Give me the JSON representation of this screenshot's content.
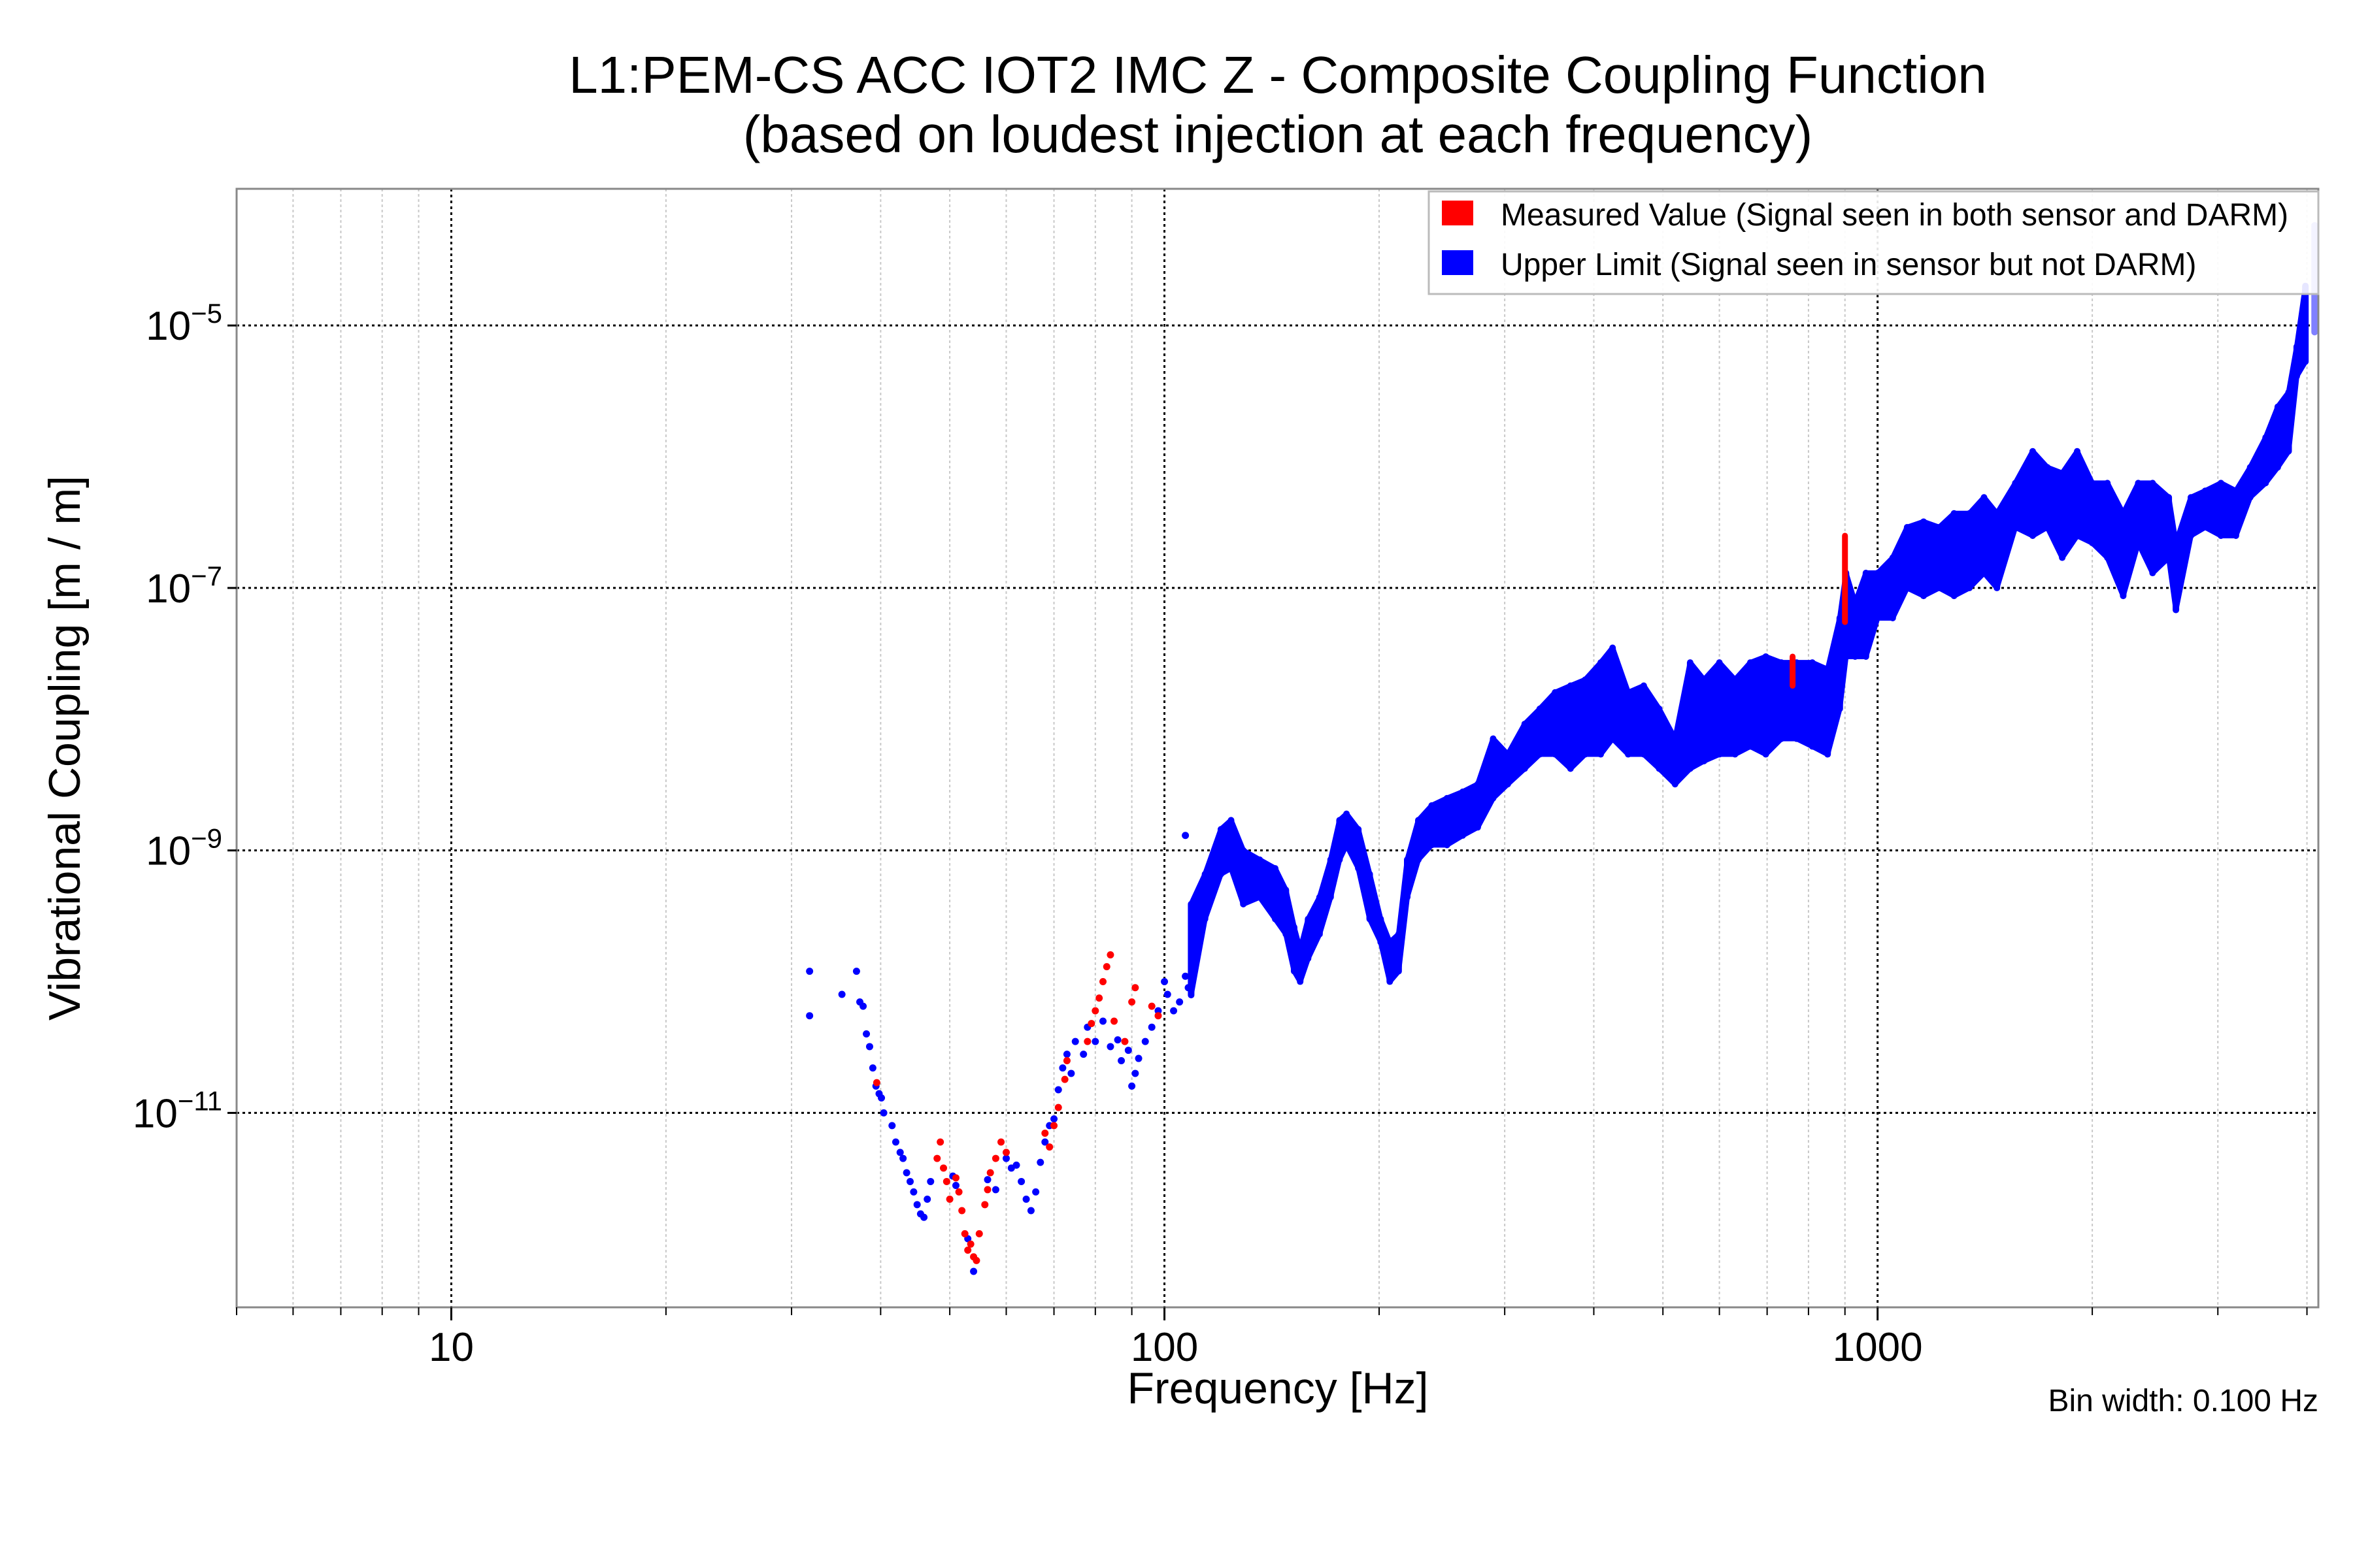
{
  "chart_data": {
    "type": "scatter",
    "title": "L1:PEM-CS ACC IOT2 IMC Z - Composite Coupling Function",
    "subtitle": "(based on loudest injection at each frequency)",
    "xlabel": "Frequency [Hz]",
    "ylabel": "Vibrational Coupling [m / m]",
    "xscale": "log",
    "yscale": "log",
    "xlim": [
      5,
      4150
    ],
    "ylim": [
      3.3e-13,
      0.00011
    ],
    "grid": true,
    "x_ticks": [
      {
        "value": 10,
        "label": "10"
      },
      {
        "value": 100,
        "label": "100"
      },
      {
        "value": 1000,
        "label": "1000"
      }
    ],
    "y_ticks": [
      {
        "value": 1e-05,
        "base": "10",
        "exp": "−5"
      },
      {
        "value": 1e-07,
        "base": "10",
        "exp": "−7"
      },
      {
        "value": 1e-09,
        "base": "10",
        "exp": "−9"
      },
      {
        "value": 1e-11,
        "base": "10",
        "exp": "−11"
      }
    ],
    "legend": {
      "placement": "top-right",
      "entries": [
        {
          "label": "Measured Value (Signal seen in both sensor and DARM)",
          "color": "#ff0000"
        },
        {
          "label": "Upper Limit (Signal seen in sensor but not DARM)",
          "color": "#0000ff"
        }
      ]
    },
    "annotation": "Bin width: 0.100 Hz",
    "series": [
      {
        "name": "Measured Value",
        "color": "#ff0000",
        "points": [
          [
            39.5,
            1.7e-11
          ],
          [
            48,
            4.5e-12
          ],
          [
            48.5,
            6e-12
          ],
          [
            49,
            3.8e-12
          ],
          [
            49.5,
            3e-12
          ],
          [
            50,
            2.2e-12
          ],
          [
            51,
            3.2e-12
          ],
          [
            51.5,
            2.5e-12
          ],
          [
            52,
            1.8e-12
          ],
          [
            52.5,
            1.2e-12
          ],
          [
            53,
            9e-13
          ],
          [
            53.5,
            1e-12
          ],
          [
            54,
            8e-13
          ],
          [
            54.5,
            7.5e-13
          ],
          [
            55,
            1.2e-12
          ],
          [
            56,
            2e-12
          ],
          [
            56.5,
            2.6e-12
          ],
          [
            57,
            3.5e-12
          ],
          [
            58,
            4.5e-12
          ],
          [
            59,
            6e-12
          ],
          [
            60,
            5e-12
          ],
          [
            68,
            7e-12
          ],
          [
            69,
            5.5e-12
          ],
          [
            70,
            8e-12
          ],
          [
            71,
            1.1e-11
          ],
          [
            72.5,
            1.8e-11
          ],
          [
            73,
            2.5e-11
          ],
          [
            78,
            3.5e-11
          ],
          [
            79,
            4.8e-11
          ],
          [
            80,
            6e-11
          ],
          [
            81,
            7.5e-11
          ],
          [
            82,
            1e-10
          ],
          [
            83,
            1.3e-10
          ],
          [
            84,
            1.6e-10
          ],
          [
            85,
            5e-11
          ],
          [
            88,
            3.5e-11
          ],
          [
            90,
            7e-11
          ],
          [
            91,
            9e-11
          ],
          [
            96,
            6.5e-11
          ],
          [
            98,
            5.5e-11
          ]
        ],
        "bands": [
          [
            760,
            1.8e-08,
            3e-08
          ],
          [
            900,
            5.5e-08,
            2.5e-07
          ]
        ]
      },
      {
        "name": "Upper Limit",
        "color": "#0000ff",
        "faded_color": "#8080ff",
        "points": [
          [
            31.8,
            1.2e-10
          ],
          [
            31.8,
            5.5e-11
          ],
          [
            35.3,
            8e-11
          ],
          [
            37,
            1.2e-10
          ],
          [
            37.4,
            7e-11
          ],
          [
            37.8,
            6.5e-11
          ],
          [
            38.2,
            4e-11
          ],
          [
            38.6,
            3.2e-11
          ],
          [
            39,
            2.2e-11
          ],
          [
            39.4,
            1.6e-11
          ],
          [
            39.8,
            1.4e-11
          ],
          [
            40.1,
            1.3e-11
          ],
          [
            40.4,
            1e-11
          ],
          [
            41.5,
            8e-12
          ],
          [
            42,
            6e-12
          ],
          [
            42.6,
            5e-12
          ],
          [
            43,
            4.5e-12
          ],
          [
            43.5,
            3.5e-12
          ],
          [
            44,
            3e-12
          ],
          [
            44.5,
            2.5e-12
          ],
          [
            45,
            2e-12
          ],
          [
            45.5,
            1.7e-12
          ],
          [
            46,
            1.6e-12
          ],
          [
            46.5,
            2.2e-12
          ],
          [
            47,
            3e-12
          ],
          [
            50.5,
            3.3e-12
          ],
          [
            51,
            2.8e-12
          ],
          [
            53,
            1.1e-12
          ],
          [
            54,
            6.2e-13
          ],
          [
            56.5,
            3.1e-12
          ],
          [
            58,
            2.6e-12
          ],
          [
            60,
            4.5e-12
          ],
          [
            61,
            3.8e-12
          ],
          [
            62,
            4e-12
          ],
          [
            63,
            3e-12
          ],
          [
            64,
            2.2e-12
          ],
          [
            65,
            1.8e-12
          ],
          [
            66,
            2.5e-12
          ],
          [
            67,
            4.2e-12
          ],
          [
            68,
            6e-12
          ],
          [
            69,
            8e-12
          ],
          [
            70,
            9e-12
          ],
          [
            71,
            1.5e-11
          ],
          [
            72,
            2.2e-11
          ],
          [
            73,
            2.8e-11
          ],
          [
            74,
            2e-11
          ],
          [
            75,
            3.5e-11
          ],
          [
            77,
            2.8e-11
          ],
          [
            78,
            4.5e-11
          ],
          [
            80,
            3.5e-11
          ],
          [
            82,
            5e-11
          ],
          [
            84,
            3.2e-11
          ],
          [
            86,
            3.6e-11
          ],
          [
            87,
            2.5e-11
          ],
          [
            89,
            3e-11
          ],
          [
            90,
            1.6e-11
          ],
          [
            91,
            2e-11
          ],
          [
            92,
            2.6e-11
          ],
          [
            94,
            3.5e-11
          ],
          [
            96,
            4.5e-11
          ],
          [
            98,
            6e-11
          ],
          [
            100,
            1e-10
          ],
          [
            101,
            8e-11
          ],
          [
            103,
            6e-11
          ],
          [
            105,
            7e-11
          ],
          [
            107,
            1.1e-10
          ],
          [
            107,
            1.3e-09
          ],
          [
            108,
            9e-11
          ]
        ],
        "bands": [
          [
            109,
            7.9e-11,
            3.9e-10
          ],
          [
            114,
            3e-10,
            6.6e-10
          ],
          [
            120,
            6.6e-10,
            1.45e-09
          ],
          [
            124,
            7.3e-10,
            1.7e-09
          ],
          [
            129,
            3.9e-10,
            1e-09
          ],
          [
            136,
            4.4e-10,
            8.5e-10
          ],
          [
            143,
            3e-10,
            7.3e-10
          ],
          [
            148,
            2.3e-10,
            5e-10
          ],
          [
            152,
            1.2e-10,
            2.6e-10
          ],
          [
            155,
            1e-10,
            1.75e-10
          ],
          [
            159,
            1.5e-10,
            3e-10
          ],
          [
            165,
            2.3e-10,
            4.4e-10
          ],
          [
            171,
            4.4e-10,
            8.5e-10
          ],
          [
            176,
            8.5e-10,
            1.7e-09
          ],
          [
            180,
            1.1e-09,
            1.9e-09
          ],
          [
            187,
            7.3e-10,
            1.45e-09
          ],
          [
            194,
            3e-10,
            6.6e-10
          ],
          [
            201,
            2e-10,
            3e-10
          ],
          [
            207,
            1e-10,
            2e-10
          ],
          [
            213,
            1.2e-10,
            2.3e-10
          ],
          [
            219,
            4.4e-10,
            8.5e-10
          ],
          [
            227,
            8.5e-10,
            1.7e-09
          ],
          [
            237,
            1.1e-09,
            2.2e-09
          ],
          [
            249,
            1.1e-09,
            2.5e-09
          ],
          [
            262,
            1.3e-09,
            2.8e-09
          ],
          [
            275,
            1.5e-09,
            3.2e-09
          ],
          [
            289,
            2.5e-09,
            7.1e-09
          ],
          [
            303,
            3.2e-09,
            5.4e-09
          ],
          [
            320,
            4.2e-09,
            9.2e-09
          ],
          [
            336,
            5.4e-09,
            1.2e-08
          ],
          [
            353,
            5.4e-09,
            1.6e-08
          ],
          [
            371,
            4.2e-09,
            1.8e-08
          ],
          [
            389,
            5.4e-09,
            2e-08
          ],
          [
            409,
            5.4e-09,
            2.7e-08
          ],
          [
            425,
            7.1e-09,
            3.5e-08
          ],
          [
            447,
            5.4e-09,
            1.6e-08
          ],
          [
            470,
            5.4e-09,
            1.8e-08
          ],
          [
            494,
            4.2e-09,
            1.2e-08
          ],
          [
            520,
            3.2e-09,
            7.1e-09
          ],
          [
            546,
            4.2e-09,
            2.7e-08
          ],
          [
            571,
            4.8e-09,
            2e-08
          ],
          [
            600,
            5.4e-09,
            2.7e-08
          ],
          [
            631,
            5.4e-09,
            2e-08
          ],
          [
            663,
            6.2e-09,
            2.7e-08
          ],
          [
            697,
            5.4e-09,
            3e-08
          ],
          [
            733,
            7.1e-09,
            2.7e-08
          ],
          [
            770,
            7.1e-09,
            2.7e-08
          ],
          [
            810,
            6.2e-09,
            2.7e-08
          ],
          [
            851,
            5.4e-09,
            2.4e-08
          ],
          [
            885,
            1.2e-08,
            5.9e-08
          ],
          [
            903,
            3e-08,
            1.3e-07
          ],
          [
            930,
            3e-08,
            7.7e-08
          ],
          [
            963,
            3e-08,
            1.3e-07
          ],
          [
            1000,
            5.9e-08,
            1.3e-07
          ],
          [
            1050,
            5.9e-08,
            1.7e-07
          ],
          [
            1100,
            1e-07,
            2.9e-07
          ],
          [
            1160,
            8.7e-08,
            3.2e-07
          ],
          [
            1220,
            1e-07,
            2.9e-07
          ],
          [
            1280,
            8.7e-08,
            3.7e-07
          ],
          [
            1345,
            1e-07,
            3.7e-07
          ],
          [
            1410,
            1.3e-07,
            4.9e-07
          ],
          [
            1470,
            1e-07,
            3.7e-07
          ],
          [
            1560,
            2.9e-07,
            6.3e-07
          ],
          [
            1650,
            2.5e-07,
            1.1e-06
          ],
          [
            1730,
            2.9e-07,
            8.3e-07
          ],
          [
            1815,
            1.7e-07,
            7.5e-07
          ],
          [
            1905,
            2.5e-07,
            1.1e-06
          ],
          [
            2000,
            2.2e-07,
            6.3e-07
          ],
          [
            2100,
            1.7e-07,
            6.3e-07
          ],
          [
            2210,
            8.7e-08,
            3.7e-07
          ],
          [
            2320,
            2.2e-07,
            6.3e-07
          ],
          [
            2430,
            1.3e-07,
            6.3e-07
          ],
          [
            2560,
            1.7e-07,
            4.9e-07
          ],
          [
            2620,
            6.8e-08,
            2.2e-07
          ],
          [
            2750,
            2.5e-07,
            4.9e-07
          ],
          [
            2880,
            2.9e-07,
            5.5e-07
          ],
          [
            3030,
            2.5e-07,
            6.3e-07
          ],
          [
            3180,
            2.5e-07,
            5.5e-07
          ],
          [
            3330,
            4.9e-07,
            8.3e-07
          ],
          [
            3500,
            6.3e-07,
            1.4e-06
          ],
          [
            3640,
            8.3e-07,
            2.4e-06
          ],
          [
            3770,
            1.1e-06,
            3.1e-06
          ],
          [
            3870,
            4.1e-06,
            6.9e-06
          ],
          [
            3980,
            5.3e-06,
            2e-05
          ]
        ],
        "faded_bands": [
          [
            4100,
            8.9e-06,
            5.8e-05
          ]
        ]
      }
    ]
  }
}
